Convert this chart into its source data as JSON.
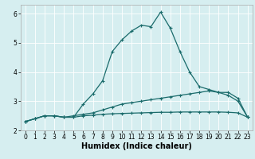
{
  "xlabel": "Humidex (Indice chaleur)",
  "bg_color": "#d6eef0",
  "line_color": "#1a6b6b",
  "grid_color": "#ffffff",
  "xlim": [
    -0.5,
    23.5
  ],
  "ylim": [
    2.0,
    6.3
  ],
  "xticks": [
    0,
    1,
    2,
    3,
    4,
    5,
    6,
    7,
    8,
    9,
    10,
    11,
    12,
    13,
    14,
    15,
    16,
    17,
    18,
    19,
    20,
    21,
    22,
    23
  ],
  "yticks": [
    2,
    3,
    4,
    5,
    6
  ],
  "series1_x": [
    0,
    1,
    2,
    3,
    4,
    5,
    6,
    7,
    8,
    9,
    10,
    11,
    12,
    13,
    14,
    15,
    16,
    17,
    18,
    19,
    20,
    21,
    22,
    23
  ],
  "series1_y": [
    2.3,
    2.4,
    2.5,
    2.5,
    2.45,
    2.45,
    2.9,
    3.25,
    3.7,
    4.7,
    5.1,
    5.4,
    5.6,
    5.55,
    6.05,
    5.5,
    4.7,
    4.0,
    3.5,
    3.4,
    3.3,
    3.2,
    3.0,
    2.45
  ],
  "series2_x": [
    0,
    1,
    2,
    3,
    4,
    5,
    6,
    7,
    8,
    9,
    10,
    11,
    12,
    13,
    14,
    15,
    16,
    17,
    18,
    19,
    20,
    21,
    22,
    23
  ],
  "series2_y": [
    2.3,
    2.4,
    2.5,
    2.5,
    2.45,
    2.5,
    2.55,
    2.6,
    2.7,
    2.8,
    2.9,
    2.95,
    3.0,
    3.05,
    3.1,
    3.15,
    3.2,
    3.25,
    3.3,
    3.35,
    3.3,
    3.3,
    3.1,
    2.45
  ],
  "series3_x": [
    0,
    1,
    2,
    3,
    4,
    5,
    6,
    7,
    8,
    9,
    10,
    11,
    12,
    13,
    14,
    15,
    16,
    17,
    18,
    19,
    20,
    21,
    22,
    23
  ],
  "series3_y": [
    2.3,
    2.4,
    2.5,
    2.5,
    2.45,
    2.45,
    2.5,
    2.52,
    2.55,
    2.57,
    2.58,
    2.59,
    2.6,
    2.61,
    2.62,
    2.62,
    2.63,
    2.63,
    2.63,
    2.63,
    2.63,
    2.62,
    2.6,
    2.45
  ],
  "marker": "+",
  "markersize": 3.5,
  "linewidth": 0.9,
  "xlabel_fontsize": 7,
  "tick_fontsize": 5.5
}
